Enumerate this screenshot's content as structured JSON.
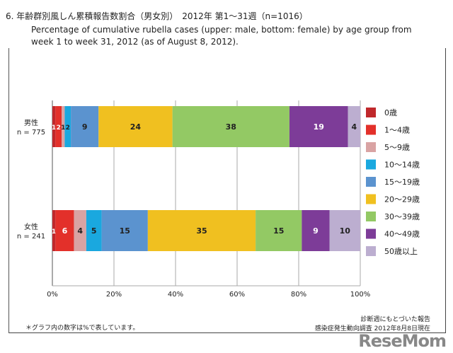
{
  "title_jp": "6.  年齢群別風しん累積報告数割合（男女別）　2012年 第1〜31週（n=1016）",
  "title_en": "Percentage of cumulative rubella cases (upper: male, bottom: female) by age group from week 1 to week 31, 2012 (as of August 8, 2012).",
  "note": "＊グラフ内の数字は%で表しています。",
  "source_line1": "診断週にもとづいた報告",
  "source_line2": "感染症発生動向調査 2012年8月8日現在",
  "watermark": "ReseMom",
  "chart_data": {
    "type": "bar",
    "orientation": "horizontal",
    "stacked": true,
    "categories": [
      "男性\nn = 775",
      "女性\nn = 241"
    ],
    "category_labels": [
      [
        "男性",
        "n = 775"
      ],
      [
        "女性",
        "n = 241"
      ]
    ],
    "xlim": [
      0,
      100
    ],
    "xticks": [
      "0%",
      "20%",
      "40%",
      "60%",
      "80%",
      "100%"
    ],
    "grid": true,
    "legend": "right",
    "series": [
      {
        "name": "0歳",
        "color": "#c0282b",
        "values": [
          1,
          1
        ],
        "label_color": "#fff"
      },
      {
        "name": "1〜4歳",
        "color": "#e3302a",
        "values": [
          2,
          6
        ],
        "label_color": "#fff"
      },
      {
        "name": "5〜9歳",
        "color": "#d9a3a3",
        "values": [
          1,
          4
        ],
        "label_color": "#222"
      },
      {
        "name": "10〜14歳",
        "color": "#1aa8df",
        "values": [
          2,
          5
        ],
        "label_color": "#222"
      },
      {
        "name": "15〜19歳",
        "color": "#5b93cf",
        "values": [
          9,
          15
        ],
        "label_color": "#222"
      },
      {
        "name": "20〜29歳",
        "color": "#f0c020",
        "values": [
          24,
          35
        ],
        "label_color": "#222"
      },
      {
        "name": "30〜39歳",
        "color": "#93c964",
        "values": [
          38,
          15
        ],
        "label_color": "#222"
      },
      {
        "name": "40〜49歳",
        "color": "#7d3c98",
        "values": [
          19,
          9
        ],
        "label_color": "#fff"
      },
      {
        "name": "50歳以上",
        "color": "#bcaed0",
        "values": [
          4,
          10
        ],
        "label_color": "#222"
      }
    ]
  }
}
